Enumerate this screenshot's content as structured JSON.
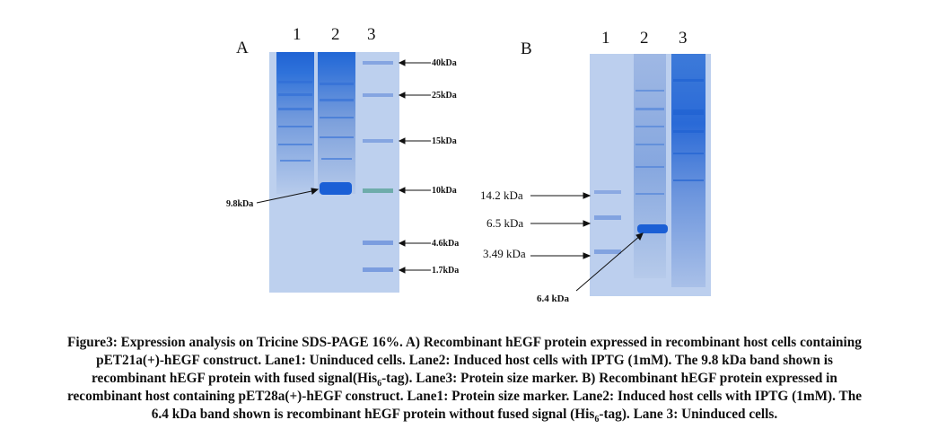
{
  "panel_a": {
    "letter": "A",
    "lanes": [
      "1",
      "2",
      "3"
    ],
    "markers": [
      "40kDa",
      "25kDa",
      "15kDa",
      "10kDa",
      "4.6kDa",
      "1.7kDa"
    ],
    "band_label": "9.8kDa"
  },
  "panel_b": {
    "letter": "B",
    "lanes": [
      "1",
      "2",
      "3"
    ],
    "markers": [
      "14.2 kDa",
      "6.5 kDa",
      "3.49 kDa"
    ],
    "band_label": "6.4 kDa"
  },
  "caption": {
    "line1": "Figure3: Expression analysis on Tricine SDS-PAGE 16%. A) Recombinant hEGF protein expressed in recombinant host cells containing",
    "line2": "pET21a(+)-hEGF construct. Lane1: Uninduced cells. Lane2: Induced host cells with IPTG (1mM). The 9.8 kDa band shown is",
    "line3_a": "recombinant hEGF protein with fused signal(His",
    "line3_sub": "6",
    "line3_b": "-tag). Lane3: Protein size marker. B) Recombinant hEGF protein expressed in",
    "line4": "recombinant host containing pET28a(+)-hEGF construct. Lane1: Protein size marker. Lane2: Induced host cells with IPTG (1mM). The",
    "line5_a": "6.4 kDa band shown is recombinant hEGF protein without fused signal (His",
    "line5_sub": "6",
    "line5_b": "-tag). Lane 3: Uninduced cells."
  },
  "colors": {
    "gel_bg": "#b8ccec",
    "band": "#1f66d6",
    "text": "#111111"
  }
}
